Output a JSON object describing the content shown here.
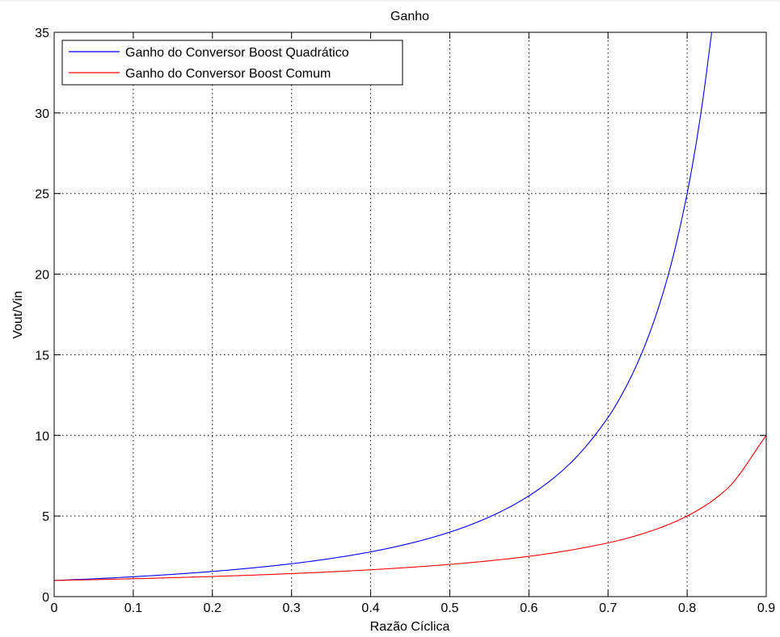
{
  "chart_data": {
    "type": "line",
    "title": "Ganho",
    "xlabel": "Razão Cíclica",
    "ylabel": "Vout/Vin",
    "xlim": [
      0,
      0.9
    ],
    "ylim": [
      0,
      35
    ],
    "xticks": [
      0,
      0.1,
      0.2,
      0.3,
      0.4,
      0.5,
      0.6,
      0.7,
      0.8,
      0.9
    ],
    "xtick_labels": [
      "0",
      "0.1",
      "0.2",
      "0.3",
      "0.4",
      "0.5",
      "0.6",
      "0.7",
      "0.8",
      "0.9"
    ],
    "yticks": [
      0,
      5,
      10,
      15,
      20,
      25,
      30,
      35
    ],
    "ytick_labels": [
      "0",
      "5",
      "10",
      "15",
      "20",
      "25",
      "30",
      "35"
    ],
    "grid": true,
    "grid_style": "dotted",
    "legend_position": "top-left",
    "series": [
      {
        "name": "Ganho do Conversor Boost Quadrático",
        "color": "#0000ff",
        "x": [
          0,
          0.05,
          0.1,
          0.15,
          0.2,
          0.25,
          0.3,
          0.35,
          0.4,
          0.45,
          0.5,
          0.55,
          0.6,
          0.65,
          0.7,
          0.72,
          0.74,
          0.76,
          0.78,
          0.8,
          0.81,
          0.82,
          0.831
        ],
        "y": [
          1.0,
          1.108,
          1.235,
          1.384,
          1.5625,
          1.778,
          2.041,
          2.367,
          2.778,
          3.306,
          4.0,
          4.938,
          6.25,
          8.163,
          11.111,
          12.755,
          14.793,
          17.361,
          20.661,
          25.0,
          27.701,
          30.864,
          35.0
        ]
      },
      {
        "name": "Ganho do Conversor Boost Comum",
        "color": "#ff0000",
        "x": [
          0,
          0.1,
          0.2,
          0.3,
          0.4,
          0.5,
          0.6,
          0.7,
          0.75,
          0.8,
          0.85,
          0.9
        ],
        "y": [
          1.0,
          1.111,
          1.25,
          1.429,
          1.667,
          2.0,
          2.5,
          3.333,
          4.0,
          5.0,
          6.667,
          10.0
        ]
      }
    ]
  }
}
